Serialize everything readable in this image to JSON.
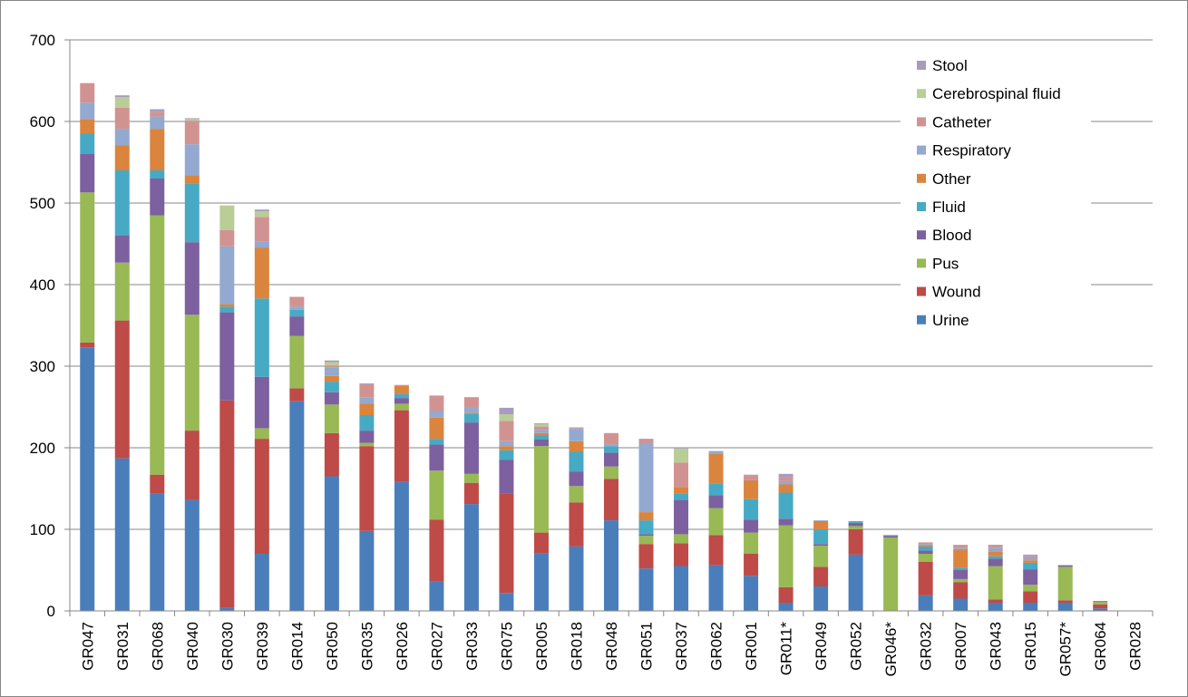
{
  "chart_data": {
    "type": "bar",
    "stacked": true,
    "title": "",
    "xlabel": "",
    "ylabel": "",
    "ylim": [
      0,
      700
    ],
    "y_ticks": [
      "0",
      "100",
      "200",
      "300",
      "400",
      "500",
      "600",
      "700"
    ],
    "grid": "horizontal",
    "legend_position": "top-right",
    "categories": [
      "GR047",
      "GR031",
      "GR068",
      "GR040",
      "GR030",
      "GR039",
      "GR014",
      "GR050",
      "GR035",
      "GR026",
      "GR027",
      "GR033",
      "GR075",
      "GR005",
      "GR018",
      "GR048",
      "GR051",
      "GR037",
      "GR062",
      "GR001",
      "GR011*",
      "GR049",
      "GR052",
      "GR046*",
      "GR032",
      "GR007",
      "GR043",
      "GR015",
      "GR057*",
      "GR064",
      "GR028"
    ],
    "series": [
      {
        "name": "Urine",
        "color": "#4A7EBB",
        "values": [
          323,
          187,
          144,
          136,
          4,
          70,
          257,
          165,
          98,
          158,
          36,
          131,
          22,
          71,
          79,
          111,
          52,
          55,
          56,
          43,
          10,
          30,
          69,
          0,
          19,
          15,
          10,
          10,
          10,
          3,
          0
        ]
      },
      {
        "name": "Wound",
        "color": "#BE4B48",
        "values": [
          6,
          169,
          23,
          85,
          254,
          141,
          16,
          53,
          104,
          88,
          76,
          26,
          122,
          25,
          54,
          51,
          30,
          28,
          37,
          27,
          19,
          24,
          31,
          0,
          41,
          20,
          4,
          14,
          3,
          5,
          0
        ]
      },
      {
        "name": "Pus",
        "color": "#98B954",
        "values": [
          184,
          71,
          318,
          142,
          0,
          13,
          64,
          35,
          4,
          8,
          60,
          11,
          0,
          106,
          20,
          15,
          10,
          11,
          33,
          26,
          76,
          26,
          4,
          90,
          10,
          4,
          41,
          8,
          41,
          3,
          0
        ]
      },
      {
        "name": "Blood",
        "color": "#7D60A0",
        "values": [
          47,
          33,
          45,
          89,
          108,
          63,
          24,
          15,
          15,
          7,
          32,
          63,
          41,
          8,
          18,
          17,
          2,
          42,
          16,
          16,
          8,
          2,
          4,
          2,
          4,
          11,
          9,
          19,
          2,
          1,
          0
        ]
      },
      {
        "name": "Fluid",
        "color": "#46AAC5",
        "values": [
          25,
          80,
          10,
          72,
          7,
          96,
          8,
          13,
          19,
          5,
          7,
          11,
          12,
          5,
          24,
          8,
          17,
          8,
          14,
          25,
          32,
          18,
          2,
          1,
          5,
          3,
          3,
          8,
          0,
          0,
          0
        ]
      },
      {
        "name": "Other",
        "color": "#DB843D",
        "values": [
          18,
          31,
          51,
          10,
          3,
          62,
          0,
          7,
          14,
          10,
          26,
          1,
          5,
          3,
          13,
          0,
          10,
          8,
          37,
          23,
          10,
          10,
          0,
          0,
          2,
          22,
          6,
          3,
          0,
          0,
          0
        ]
      },
      {
        "name": "Respiratory",
        "color": "#93A9CF",
        "values": [
          20,
          20,
          15,
          38,
          71,
          8,
          4,
          10,
          8,
          0,
          8,
          7,
          6,
          4,
          15,
          2,
          84,
          0,
          3,
          1,
          4,
          1,
          0,
          0,
          1,
          2,
          4,
          3,
          0,
          0,
          0
        ]
      },
      {
        "name": "Catheter",
        "color": "#D19392",
        "values": [
          24,
          26,
          6,
          29,
          20,
          30,
          12,
          3,
          16,
          1,
          19,
          12,
          25,
          4,
          1,
          14,
          5,
          30,
          0,
          5,
          5,
          0,
          0,
          0,
          2,
          4,
          3,
          2,
          0,
          0,
          0
        ]
      },
      {
        "name": "Cerebrospinal fluid",
        "color": "#B9CD96",
        "values": [
          0,
          13,
          0,
          2,
          30,
          7,
          0,
          4,
          0,
          0,
          0,
          0,
          8,
          3,
          0,
          0,
          0,
          17,
          0,
          0,
          0,
          0,
          0,
          0,
          0,
          0,
          0,
          0,
          0,
          0,
          0
        ]
      },
      {
        "name": "Stool",
        "color": "#A99BBD",
        "values": [
          0,
          2,
          3,
          1,
          0,
          2,
          0,
          2,
          1,
          0,
          0,
          0,
          8,
          1,
          1,
          0,
          1,
          1,
          0,
          1,
          4,
          0,
          0,
          0,
          0,
          0,
          1,
          2,
          0,
          0,
          0
        ]
      }
    ]
  }
}
